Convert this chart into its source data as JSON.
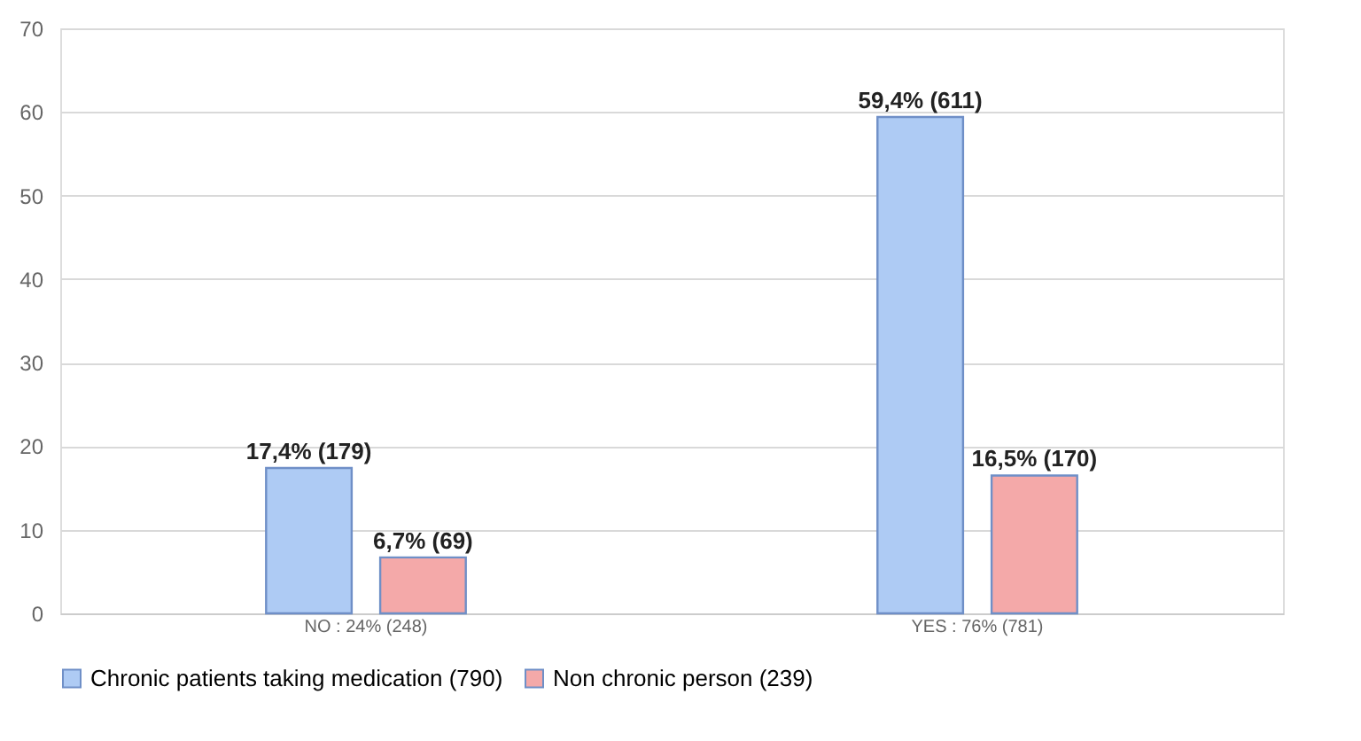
{
  "chart_data": {
    "type": "bar",
    "categories": [
      "NO : 24% (248)",
      "YES : 76% (781)"
    ],
    "series": [
      {
        "name": "Chronic patients taking medication (790)",
        "color": "#aecbf4",
        "values": [
          17.4,
          59.4
        ],
        "value_labels": [
          "17,4% (179)",
          "59,4% (611)"
        ]
      },
      {
        "name": "Non chronic person (239)",
        "color": "#f4a9a9",
        "values": [
          6.7,
          16.5
        ],
        "value_labels": [
          "6,7% (69)",
          "16,5% (170)"
        ]
      }
    ],
    "ylim": [
      0,
      70
    ],
    "yticks": [
      0,
      10,
      20,
      30,
      40,
      50,
      60,
      70
    ],
    "grid": "y",
    "legend": "bottom"
  }
}
